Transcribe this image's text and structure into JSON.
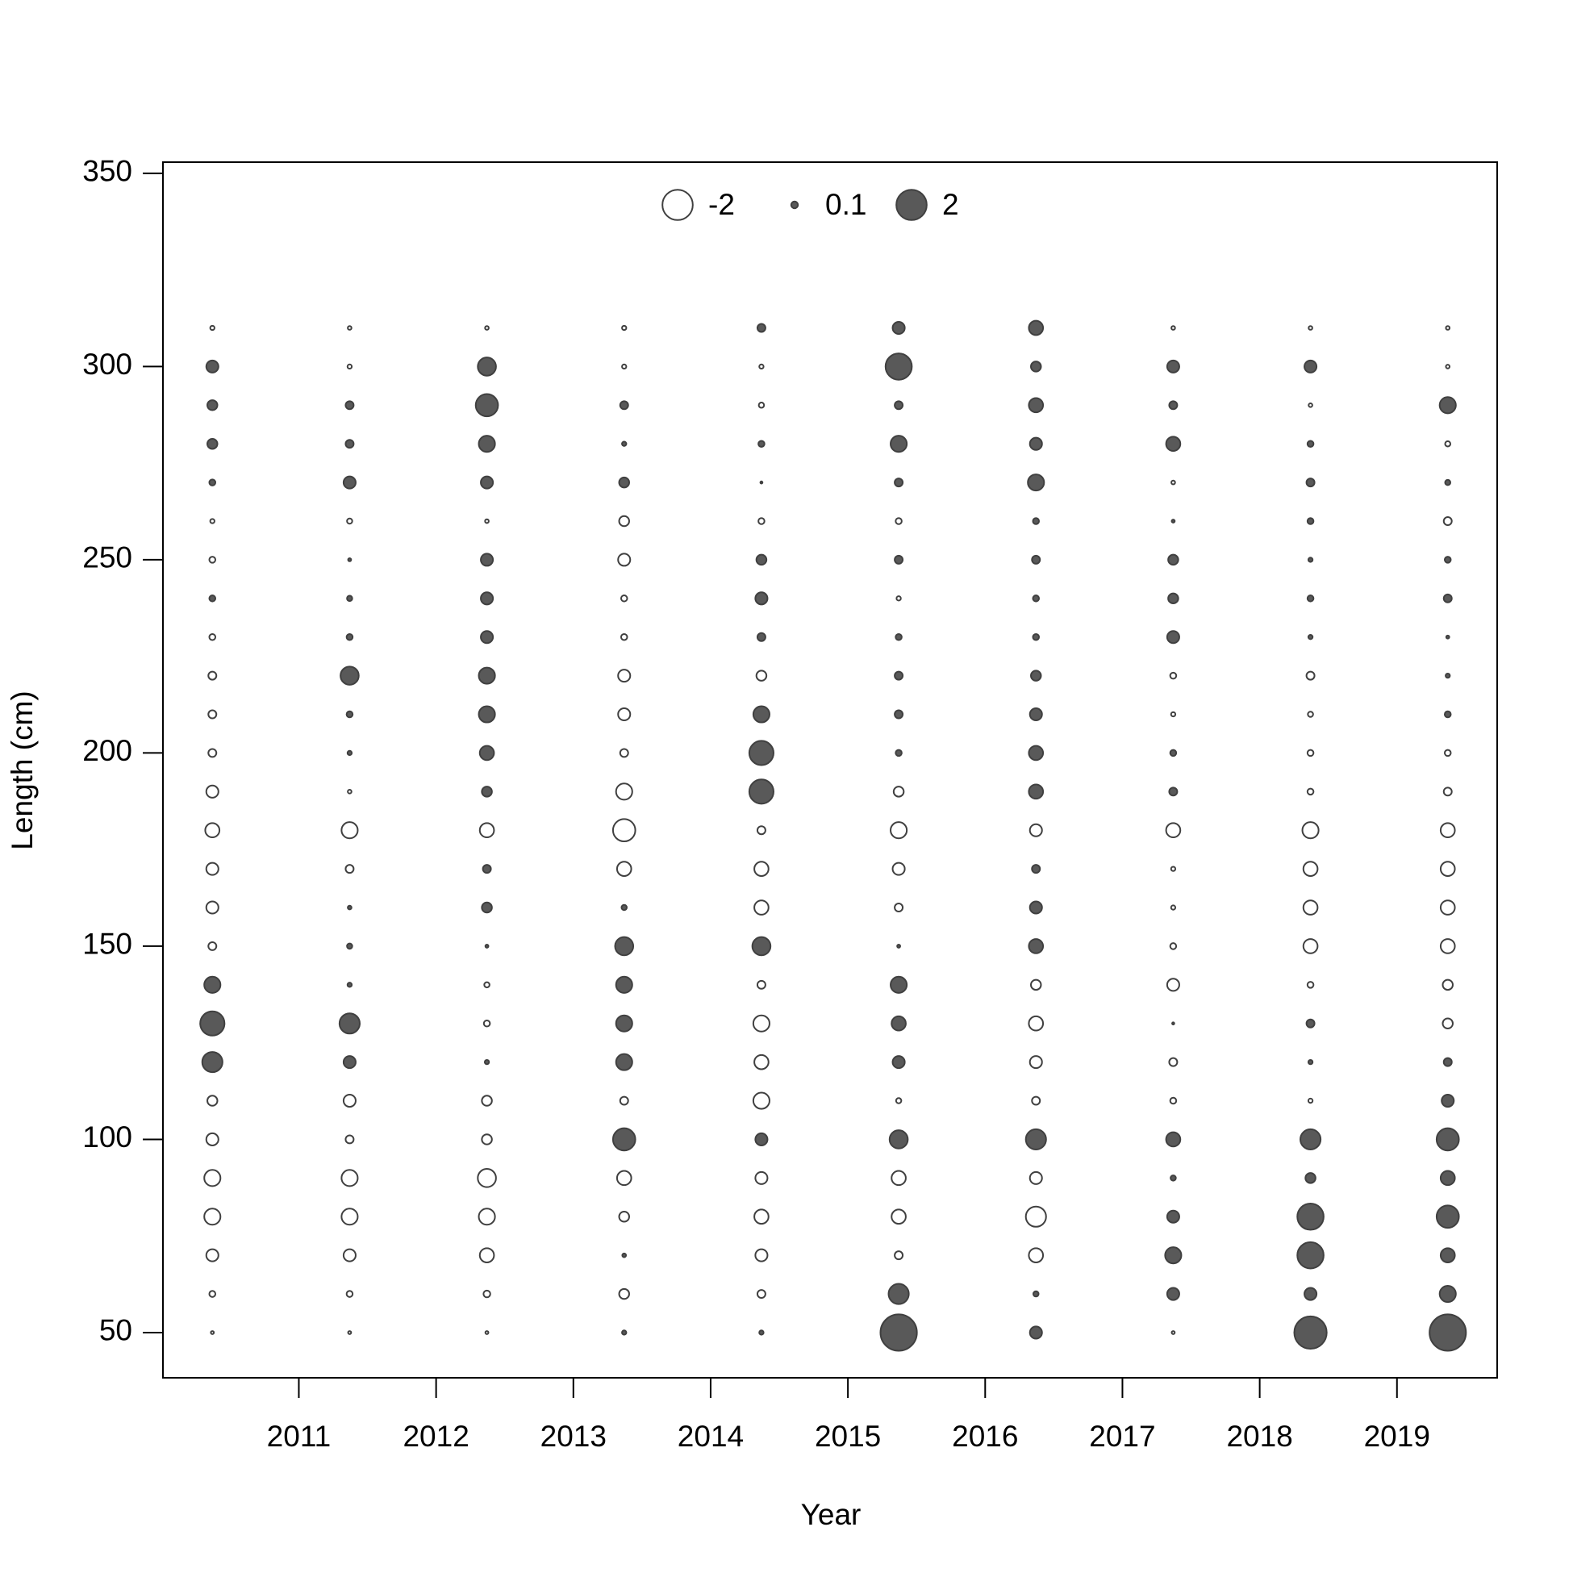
{
  "chart_data": {
    "type": "bubble",
    "x_label": "Year",
    "y_label": "Length (cm)",
    "x": [
      2010.37,
      2011.37,
      2012.37,
      2013.37,
      2014.37,
      2015.37,
      2016.37,
      2017.37,
      2018.37,
      2019.37
    ],
    "y": [
      50,
      60,
      70,
      80,
      90,
      100,
      110,
      120,
      130,
      140,
      150,
      160,
      170,
      180,
      190,
      200,
      210,
      220,
      230,
      240,
      250,
      260,
      270,
      280,
      290,
      300,
      310
    ],
    "values": [
      [
        -0.02,
        -0.08,
        -0.32,
        -0.57,
        -0.57,
        -0.32,
        -0.22,
        0.89,
        1.28,
        0.57,
        -0.14,
        -0.32,
        -0.32,
        -0.44,
        -0.32,
        -0.14,
        -0.14,
        -0.14,
        -0.08,
        0.08,
        -0.08,
        -0.04,
        0.08,
        0.22,
        0.22,
        0.32,
        -0.04
      ],
      [
        -0.02,
        -0.08,
        -0.32,
        -0.57,
        -0.57,
        -0.14,
        -0.32,
        0.32,
        0.89,
        0.04,
        0.06,
        0.03,
        -0.14,
        -0.57,
        -0.03,
        0.04,
        0.08,
        0.72,
        0.08,
        0.06,
        0.02,
        -0.06,
        0.32,
        0.14,
        0.14,
        -0.04,
        -0.03
      ],
      [
        -0.02,
        -0.1,
        -0.44,
        -0.57,
        -0.72,
        -0.22,
        -0.22,
        0.04,
        -0.08,
        -0.06,
        0.02,
        0.22,
        0.14,
        -0.44,
        0.22,
        0.44,
        0.57,
        0.57,
        0.32,
        0.32,
        0.32,
        -0.03,
        0.32,
        0.57,
        1.08,
        0.72,
        -0.03
      ],
      [
        0.04,
        -0.22,
        0.03,
        -0.22,
        -0.44,
        1.08,
        -0.14,
        0.57,
        0.57,
        0.57,
        0.72,
        0.06,
        -0.44,
        -1.08,
        -0.57,
        -0.14,
        -0.32,
        -0.32,
        -0.08,
        -0.08,
        -0.32,
        -0.22,
        0.22,
        0.04,
        0.14,
        -0.04,
        -0.04
      ],
      [
        0.04,
        -0.14,
        -0.32,
        -0.44,
        -0.32,
        0.32,
        -0.57,
        -0.44,
        -0.57,
        -0.14,
        0.72,
        -0.44,
        -0.44,
        -0.14,
        1.28,
        1.28,
        0.57,
        -0.22,
        0.14,
        0.32,
        0.22,
        -0.08,
        0.01,
        0.08,
        -0.06,
        -0.04,
        0.14
      ],
      [
        2.88,
        0.89,
        -0.14,
        -0.44,
        -0.44,
        0.72,
        -0.06,
        0.32,
        0.44,
        0.57,
        0.02,
        -0.14,
        -0.32,
        -0.57,
        -0.22,
        0.08,
        0.14,
        0.14,
        0.08,
        -0.04,
        0.14,
        -0.08,
        0.14,
        0.57,
        0.14,
        1.5,
        0.32
      ],
      [
        0.32,
        0.06,
        -0.44,
        -0.89,
        -0.32,
        0.89,
        -0.14,
        -0.32,
        -0.44,
        -0.22,
        0.44,
        0.32,
        0.14,
        -0.32,
        0.44,
        0.44,
        0.32,
        0.22,
        0.08,
        0.08,
        0.14,
        0.08,
        0.57,
        0.32,
        0.44,
        0.22,
        0.44
      ],
      [
        -0.02,
        0.32,
        0.57,
        0.32,
        0.06,
        0.44,
        -0.08,
        -0.14,
        0.01,
        -0.32,
        -0.08,
        -0.04,
        -0.04,
        -0.44,
        0.14,
        0.08,
        -0.04,
        -0.08,
        0.32,
        0.22,
        0.22,
        0.02,
        -0.03,
        0.44,
        0.14,
        0.32,
        -0.03
      ],
      [
        2.28,
        0.32,
        1.5,
        1.5,
        0.22,
        0.89,
        -0.04,
        0.04,
        0.14,
        -0.08,
        -0.44,
        -0.44,
        -0.44,
        -0.57,
        -0.08,
        -0.08,
        -0.06,
        -0.14,
        0.04,
        0.08,
        0.04,
        0.08,
        0.14,
        0.08,
        -0.03,
        0.32,
        -0.03
      ],
      [
        2.88,
        0.57,
        0.44,
        1.08,
        0.44,
        1.08,
        0.32,
        0.14,
        -0.22,
        -0.22,
        -0.44,
        -0.44,
        -0.44,
        -0.44,
        -0.14,
        -0.08,
        0.08,
        0.04,
        0.02,
        0.14,
        0.08,
        -0.14,
        0.06,
        -0.06,
        0.57,
        -0.03,
        -0.03
      ]
    ],
    "legend": [
      -2,
      0.1,
      2
    ],
    "positive_color": "#595959",
    "negative_color": "#ffffff",
    "edge_color": "#404040",
    "xlim": [
      2010.01,
      2019.73
    ],
    "ylim": [
      38.3,
      352.9
    ],
    "xticks": [
      2011,
      2012,
      2013,
      2014,
      2015,
      2016,
      2017,
      2018,
      2019
    ],
    "yticks": [
      50,
      100,
      150,
      200,
      250,
      300,
      350
    ]
  }
}
